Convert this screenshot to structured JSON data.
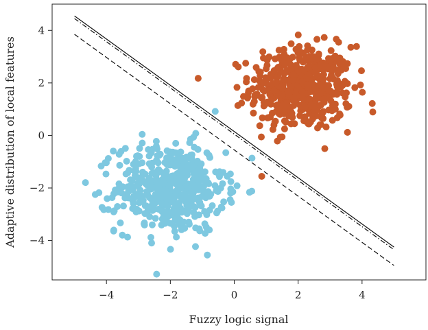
{
  "chart_data": {
    "type": "scatter",
    "xlabel": "Fuzzy logic signal",
    "ylabel": "Adaptive distribution of local features",
    "xlim": [
      -5.7,
      6.0
    ],
    "ylim": [
      -5.5,
      5.0
    ],
    "xticks": [
      -4,
      -2,
      0,
      2,
      4
    ],
    "yticks": [
      -4,
      -2,
      0,
      2,
      4
    ],
    "grid": false,
    "legend": "none",
    "series": [
      {
        "color": "#C85A2A",
        "marker": "circle",
        "cluster": {
          "center": [
            2.1,
            1.8
          ],
          "std": [
            0.8,
            0.8
          ],
          "count": 500
        }
      },
      {
        "color": "#7EC8E0",
        "marker": "circle",
        "cluster": {
          "center": [
            -2.0,
            -2.0
          ],
          "std": [
            0.85,
            0.85
          ],
          "count": 500
        }
      }
    ],
    "lines": [
      {
        "style": "solid",
        "x": [
          -5.0,
          5.0
        ],
        "y": [
          4.55,
          -4.25
        ]
      },
      {
        "style": "dashdot",
        "x": [
          -5.0,
          5.0
        ],
        "y": [
          4.45,
          -4.35
        ]
      },
      {
        "style": "dashed",
        "x": [
          -5.0,
          5.0
        ],
        "y": [
          3.85,
          -4.95
        ]
      }
    ]
  }
}
